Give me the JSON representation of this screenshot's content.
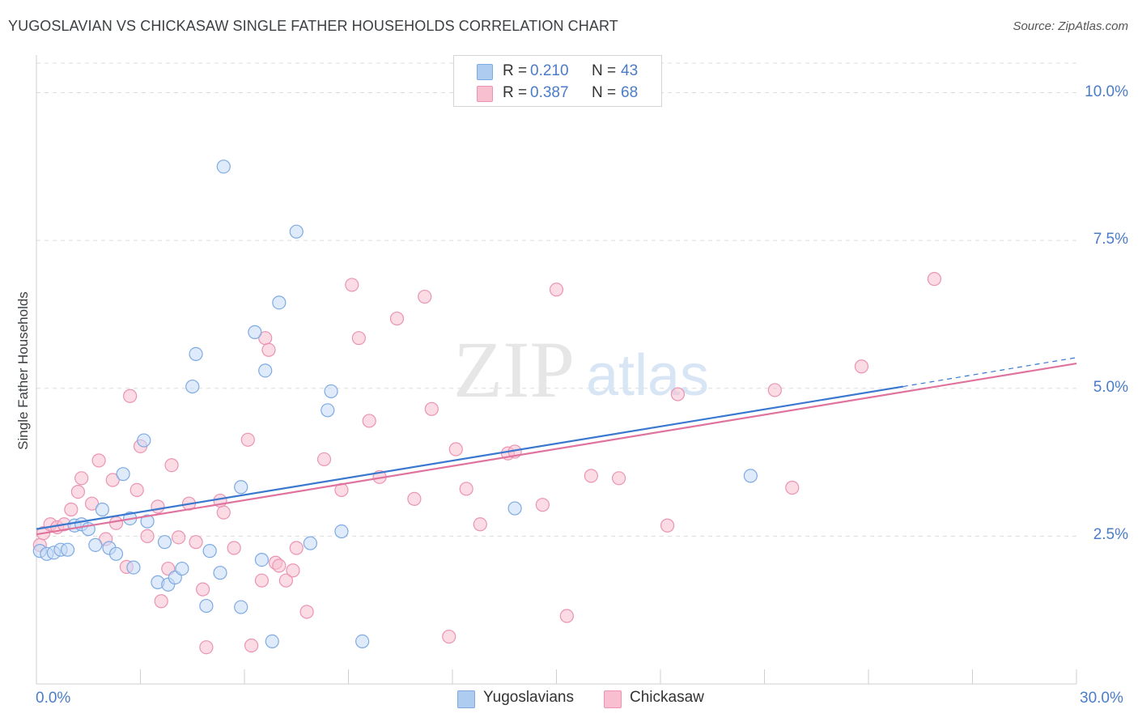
{
  "header": {
    "title": "YUGOSLAVIAN VS CHICKASAW SINGLE FATHER HOUSEHOLDS CORRELATION CHART",
    "source": "Source: ZipAtlas.com"
  },
  "legend_top": {
    "rows": [
      {
        "r_label": "R =",
        "r_value": "0.210",
        "n_label": "N =",
        "n_value": "43",
        "color": "#aecbf0"
      },
      {
        "r_label": "R =",
        "r_value": "0.387",
        "n_label": "N =",
        "n_value": "68",
        "color": "#f7bfd0"
      }
    ]
  },
  "legend_bottom": {
    "items": [
      {
        "label": "Yugoslavians",
        "color": "#aecbf0"
      },
      {
        "label": "Chickasaw",
        "color": "#f7bfd0"
      }
    ]
  },
  "watermark": {
    "zip": "ZIP",
    "atlas": "atlas"
  },
  "chart_data": {
    "type": "scatter",
    "title": "YUGOSLAVIAN VS CHICKASAW SINGLE FATHER HOUSEHOLDS CORRELATION CHART",
    "xlabel": "",
    "ylabel": "Single Father Households",
    "xlim": [
      0,
      30
    ],
    "ylim": [
      0,
      10.5
    ],
    "x_tick_labels": [
      "0.0%",
      "30.0%"
    ],
    "y_ticks": [
      2.5,
      5.0,
      7.5,
      10.0
    ],
    "y_tick_labels": [
      "2.5%",
      "5.0%",
      "7.5%",
      "10.0%"
    ],
    "grid": true,
    "legend_position": "top-center",
    "series": [
      {
        "name": "Yugoslavians",
        "color": "#aecbf0",
        "line_color": "#3a78d0",
        "trend": {
          "x0": 0.0,
          "y0": 2.62,
          "x1": 25.0,
          "y1": 5.03,
          "x_dash_end": 30.0,
          "y_dash_end": 5.52
        },
        "points": [
          [
            0.1,
            2.25
          ],
          [
            0.3,
            2.2
          ],
          [
            0.5,
            2.22
          ],
          [
            0.7,
            2.27
          ],
          [
            0.9,
            2.27
          ],
          [
            1.1,
            2.68
          ],
          [
            1.3,
            2.7
          ],
          [
            1.5,
            2.62
          ],
          [
            1.7,
            2.35
          ],
          [
            1.9,
            2.95
          ],
          [
            2.1,
            2.3
          ],
          [
            2.3,
            2.2
          ],
          [
            2.5,
            3.55
          ],
          [
            2.7,
            2.8
          ],
          [
            2.8,
            1.97
          ],
          [
            3.1,
            4.12
          ],
          [
            3.2,
            2.75
          ],
          [
            3.5,
            1.72
          ],
          [
            3.7,
            2.4
          ],
          [
            3.8,
            1.68
          ],
          [
            4.0,
            1.8
          ],
          [
            4.2,
            1.95
          ],
          [
            4.5,
            5.03
          ],
          [
            4.6,
            5.58
          ],
          [
            4.9,
            1.32
          ],
          [
            5.0,
            2.25
          ],
          [
            5.3,
            1.88
          ],
          [
            5.4,
            8.75
          ],
          [
            5.9,
            1.3
          ],
          [
            5.9,
            3.33
          ],
          [
            6.3,
            5.95
          ],
          [
            6.5,
            2.1
          ],
          [
            6.6,
            5.3
          ],
          [
            6.8,
            0.72
          ],
          [
            7.0,
            6.45
          ],
          [
            7.5,
            7.65
          ],
          [
            7.9,
            2.38
          ],
          [
            8.4,
            4.63
          ],
          [
            8.5,
            4.95
          ],
          [
            8.8,
            2.58
          ],
          [
            9.4,
            0.72
          ],
          [
            13.8,
            2.97
          ],
          [
            20.6,
            3.52
          ]
        ]
      },
      {
        "name": "Chickasaw",
        "color": "#f7bfd0",
        "line_color": "#e0739d",
        "trend": {
          "x0": 0.0,
          "y0": 2.53,
          "x1": 30.0,
          "y1": 5.42
        },
        "points": [
          [
            0.1,
            2.35
          ],
          [
            0.2,
            2.55
          ],
          [
            0.4,
            2.7
          ],
          [
            0.6,
            2.65
          ],
          [
            0.8,
            2.7
          ],
          [
            1.0,
            2.95
          ],
          [
            1.2,
            3.25
          ],
          [
            1.3,
            3.48
          ],
          [
            1.6,
            3.05
          ],
          [
            1.8,
            3.78
          ],
          [
            2.0,
            2.45
          ],
          [
            2.2,
            3.45
          ],
          [
            2.3,
            2.72
          ],
          [
            2.6,
            1.98
          ],
          [
            2.7,
            4.87
          ],
          [
            2.9,
            3.28
          ],
          [
            3.0,
            4.02
          ],
          [
            3.2,
            2.5
          ],
          [
            3.5,
            3.0
          ],
          [
            3.6,
            1.4
          ],
          [
            3.8,
            1.95
          ],
          [
            3.9,
            3.7
          ],
          [
            4.1,
            2.48
          ],
          [
            4.4,
            3.05
          ],
          [
            4.6,
            2.4
          ],
          [
            4.8,
            1.6
          ],
          [
            4.9,
            0.62
          ],
          [
            5.3,
            3.1
          ],
          [
            5.4,
            2.9
          ],
          [
            5.7,
            2.3
          ],
          [
            6.1,
            4.13
          ],
          [
            6.2,
            0.65
          ],
          [
            6.5,
            1.75
          ],
          [
            6.6,
            5.85
          ],
          [
            6.7,
            5.65
          ],
          [
            6.9,
            2.05
          ],
          [
            7.0,
            2.0
          ],
          [
            7.2,
            1.75
          ],
          [
            7.4,
            1.92
          ],
          [
            7.5,
            2.3
          ],
          [
            7.8,
            1.22
          ],
          [
            8.3,
            3.8
          ],
          [
            8.8,
            3.28
          ],
          [
            9.1,
            6.75
          ],
          [
            9.3,
            5.85
          ],
          [
            9.6,
            4.45
          ],
          [
            9.9,
            3.5
          ],
          [
            10.4,
            6.18
          ],
          [
            10.9,
            3.13
          ],
          [
            11.2,
            6.55
          ],
          [
            11.4,
            4.65
          ],
          [
            11.9,
            0.8
          ],
          [
            12.1,
            3.97
          ],
          [
            12.4,
            3.3
          ],
          [
            12.8,
            2.7
          ],
          [
            13.6,
            3.9
          ],
          [
            13.8,
            3.93
          ],
          [
            14.6,
            3.03
          ],
          [
            15.0,
            6.67
          ],
          [
            15.3,
            1.15
          ],
          [
            16.0,
            3.52
          ],
          [
            16.8,
            3.48
          ],
          [
            18.2,
            2.68
          ],
          [
            18.5,
            4.9
          ],
          [
            21.3,
            4.97
          ],
          [
            21.8,
            3.32
          ],
          [
            23.8,
            5.37
          ],
          [
            25.9,
            6.85
          ]
        ]
      }
    ]
  }
}
